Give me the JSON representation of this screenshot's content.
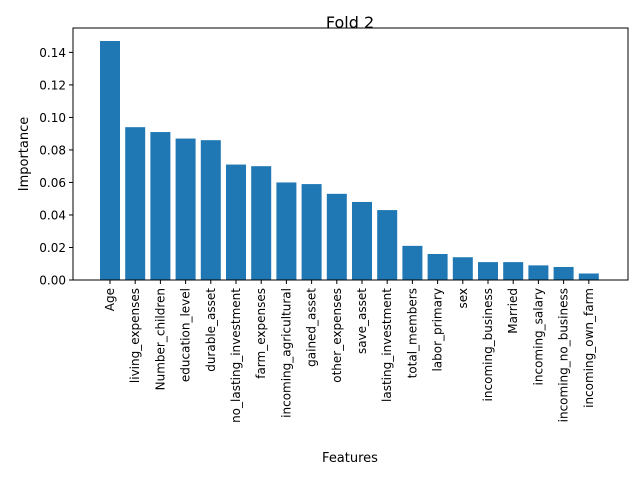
{
  "chart_data": {
    "type": "bar",
    "title": "Fold 2",
    "xlabel": "Features",
    "ylabel": "Importance",
    "ylim": [
      0,
      0.155
    ],
    "yticks": [
      0.0,
      0.02,
      0.04,
      0.06,
      0.08,
      0.1,
      0.12,
      0.14
    ],
    "ytick_labels": [
      "0.00",
      "0.02",
      "0.04",
      "0.06",
      "0.08",
      "0.10",
      "0.12",
      "0.14"
    ],
    "grid": false,
    "bar_color": "#1f77b4",
    "categories": [
      "Age",
      "living_expenses",
      "Number_children",
      "education_level",
      "durable_asset",
      "no_lasting_investment",
      "farm_expenses",
      "incoming_agricultural",
      "gained_asset",
      "other_expenses",
      "save_asset",
      "lasting_investment",
      "total_members",
      "labor_primary",
      "sex",
      "incoming_business",
      "Married",
      "incoming_salary",
      "incoming_no_business",
      "incoming_own_farm"
    ],
    "values": [
      0.147,
      0.094,
      0.091,
      0.087,
      0.086,
      0.071,
      0.07,
      0.06,
      0.059,
      0.053,
      0.048,
      0.043,
      0.021,
      0.016,
      0.014,
      0.011,
      0.011,
      0.009,
      0.008,
      0.004
    ]
  }
}
